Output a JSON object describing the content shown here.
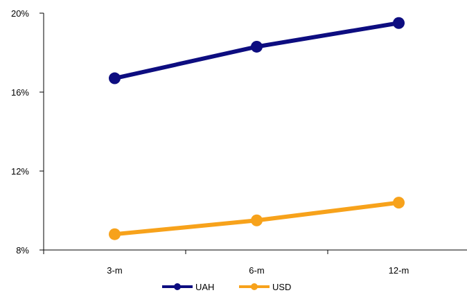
{
  "chart_data": {
    "type": "line",
    "categories": [
      "3-m",
      "6-m",
      "12-m"
    ],
    "series": [
      {
        "name": "UAH",
        "values": [
          16.7,
          18.3,
          19.5
        ],
        "color": "#0d0d80"
      },
      {
        "name": "USD",
        "values": [
          8.8,
          9.5,
          10.4
        ],
        "color": "#f7a21b"
      }
    ],
    "ylim": [
      8,
      20
    ],
    "yticks": [
      8,
      12,
      16,
      20
    ],
    "ytick_labels": [
      "8%",
      "12%",
      "16%",
      "20%"
    ],
    "legend_position": "bottom",
    "grid": false
  }
}
